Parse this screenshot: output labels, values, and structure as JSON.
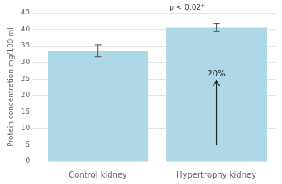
{
  "chart_data": {
    "type": "bar",
    "categories": [
      "Control kidney",
      "Hypertrophy kidney"
    ],
    "values": [
      33.5,
      40.5
    ],
    "errors": [
      1.8,
      1.2
    ],
    "color": "#add8e6",
    "ylabel": "Protein concentration mg/100 ml",
    "ylim": [
      0,
      45
    ],
    "yticks": [
      0,
      5,
      10,
      15,
      20,
      25,
      30,
      35,
      40,
      45
    ],
    "grid": true,
    "annotations": [
      "p < 0,02*",
      "20%"
    ]
  }
}
